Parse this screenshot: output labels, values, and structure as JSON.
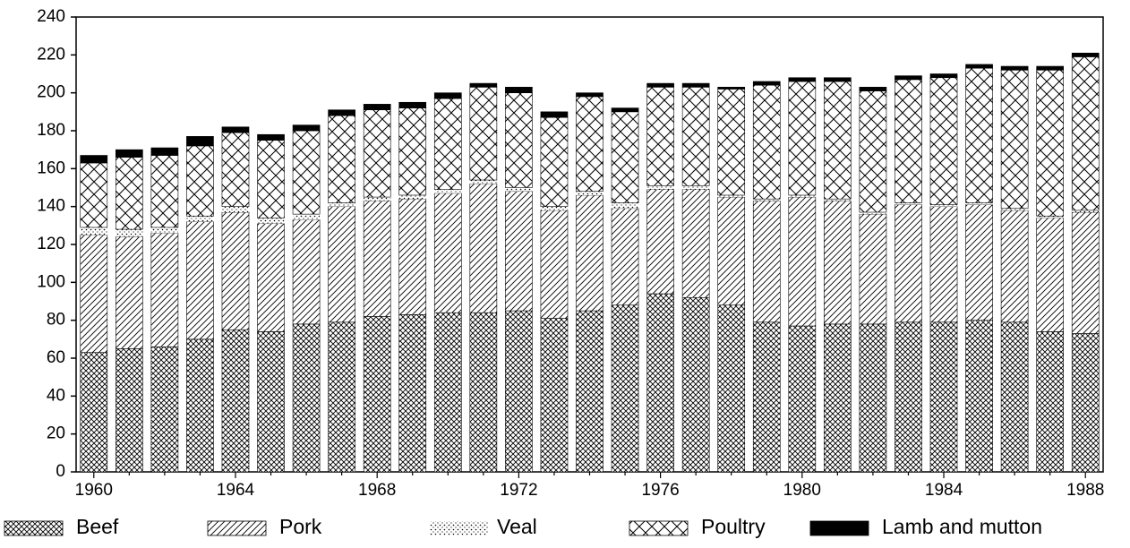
{
  "chart_data": {
    "type": "stacked-bar",
    "categories": [
      "1960",
      null,
      null,
      null,
      "1964",
      null,
      null,
      null,
      "1968",
      null,
      null,
      null,
      "1972",
      null,
      null,
      null,
      "1976",
      null,
      null,
      null,
      "1980",
      null,
      null,
      null,
      "1984",
      null,
      null,
      null,
      "1988"
    ],
    "ylim": [
      0,
      240
    ],
    "yticks": [
      0,
      20,
      40,
      60,
      80,
      100,
      120,
      140,
      160,
      180,
      200,
      220,
      240
    ],
    "series": [
      {
        "name": "Beef",
        "color": "#000000",
        "pattern": "fine-crosshatch",
        "values": [
          63,
          65,
          66,
          70,
          75,
          74,
          78,
          79,
          82,
          83,
          84,
          84,
          85,
          81,
          85,
          88,
          94,
          92,
          88,
          79,
          77,
          78,
          78,
          79,
          79,
          80,
          79,
          74,
          73
        ]
      },
      {
        "name": "Pork",
        "color": "#000000",
        "pattern": "diagonal",
        "values": [
          62,
          59,
          60,
          62,
          62,
          57,
          55,
          61,
          61,
          61,
          63,
          68,
          63,
          57,
          61,
          51,
          55,
          57,
          57,
          64,
          68,
          65,
          58,
          62,
          61,
          61,
          59,
          60,
          64
        ]
      },
      {
        "name": "Veal",
        "color": "#000000",
        "pattern": "dots",
        "values": [
          4,
          4,
          3,
          3,
          3,
          3,
          3,
          2,
          2,
          2,
          2,
          2,
          2,
          2,
          2,
          3,
          2,
          2,
          1,
          1,
          1,
          1,
          1,
          1,
          1,
          1,
          1,
          1,
          1
        ]
      },
      {
        "name": "Poultry",
        "color": "#000000",
        "pattern": "coarse-crosshatch",
        "values": [
          34,
          38,
          38,
          37,
          39,
          41,
          44,
          46,
          46,
          46,
          48,
          49,
          50,
          47,
          50,
          48,
          52,
          52,
          56,
          60,
          60,
          62,
          64,
          65,
          67,
          71,
          73,
          77,
          81
        ]
      },
      {
        "name": "Lamb and mutton",
        "color": "#000000",
        "pattern": "solid",
        "values": [
          4,
          4,
          4,
          5,
          3,
          3,
          3,
          3,
          3,
          3,
          3,
          2,
          3,
          3,
          2,
          2,
          2,
          2,
          1,
          2,
          2,
          2,
          2,
          2,
          2,
          2,
          2,
          2,
          2
        ]
      }
    ]
  }
}
